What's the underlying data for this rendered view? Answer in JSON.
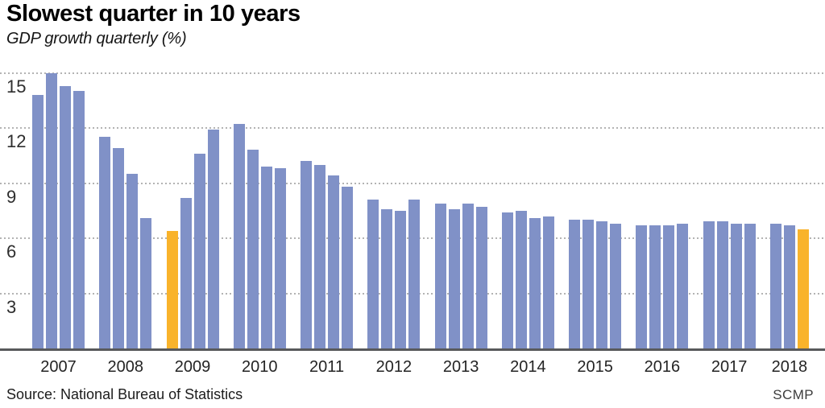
{
  "header": {
    "title": "Slowest quarter in 10 years",
    "subtitle": "GDP growth quarterly (%)"
  },
  "footer": {
    "source": "Source: National Bureau of Statistics",
    "credit": "SCMP"
  },
  "chart_data": {
    "type": "bar",
    "title": "Slowest quarter in 10 years",
    "subtitle": "GDP growth quarterly (%)",
    "ylabel": "GDP growth quarterly (%)",
    "xlabel": "",
    "ylim": [
      0,
      15.5
    ],
    "yticks": [
      15,
      12,
      9,
      6,
      3
    ],
    "grid": "horizontal dotted",
    "legend": "none",
    "colors": {
      "bar": "#8091c7",
      "highlight": "#f9b32b",
      "axis": "#58595b",
      "gridline": "#b3b3b3"
    },
    "highlight_note": "2009 Q1 (6.4) and 2018 Q3 (6.5) shown in orange",
    "years": [
      {
        "year": "2007",
        "values": [
          13.8,
          15.0,
          14.3,
          14.0
        ],
        "highlight": []
      },
      {
        "year": "2008",
        "values": [
          11.5,
          10.9,
          9.5,
          7.1
        ],
        "highlight": []
      },
      {
        "year": "2009",
        "values": [
          6.4,
          8.2,
          10.6,
          11.9
        ],
        "highlight": [
          0
        ]
      },
      {
        "year": "2010",
        "values": [
          12.2,
          10.8,
          9.9,
          9.8
        ],
        "highlight": []
      },
      {
        "year": "2011",
        "values": [
          10.2,
          10.0,
          9.4,
          8.8
        ],
        "highlight": []
      },
      {
        "year": "2012",
        "values": [
          8.1,
          7.6,
          7.5,
          8.1
        ],
        "highlight": []
      },
      {
        "year": "2013",
        "values": [
          7.9,
          7.6,
          7.9,
          7.7
        ],
        "highlight": []
      },
      {
        "year": "2014",
        "values": [
          7.4,
          7.5,
          7.1,
          7.2
        ],
        "highlight": []
      },
      {
        "year": "2015",
        "values": [
          7.0,
          7.0,
          6.9,
          6.8
        ],
        "highlight": []
      },
      {
        "year": "2016",
        "values": [
          6.7,
          6.7,
          6.7,
          6.8
        ],
        "highlight": []
      },
      {
        "year": "2017",
        "values": [
          6.9,
          6.9,
          6.8,
          6.8
        ],
        "highlight": []
      },
      {
        "year": "2018",
        "values": [
          6.8,
          6.7,
          6.5
        ],
        "highlight": [
          2
        ]
      }
    ]
  }
}
